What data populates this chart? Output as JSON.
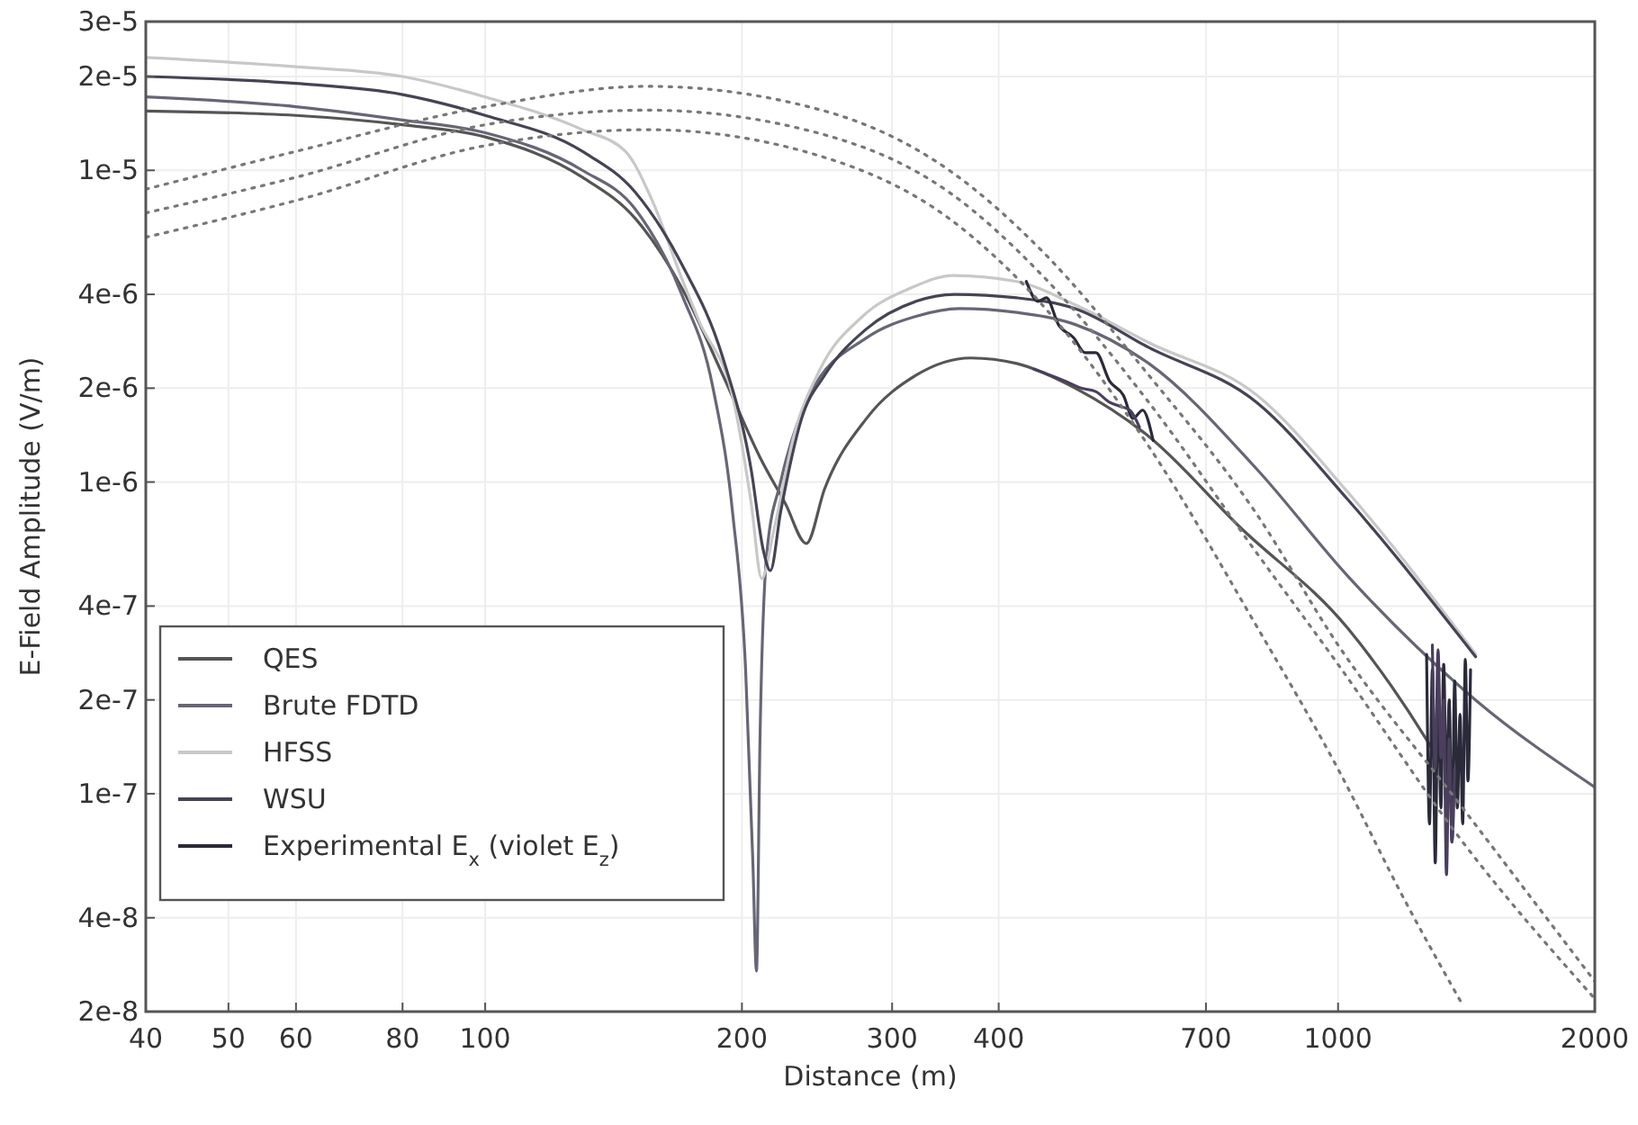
{
  "chart_data": {
    "type": "line",
    "xlabel": "Distance (m)",
    "ylabel": "E-Field Amplitude (V/m)",
    "log": "xy",
    "grid": true,
    "legend": "bottom left",
    "xlim": [
      40,
      2000
    ],
    "ylim": [
      2e-08,
      3e-05
    ],
    "xticks": [
      40,
      50,
      60,
      80,
      100,
      200,
      300,
      400,
      700,
      1000,
      2000
    ],
    "yticks": [
      {
        "value": 3e-05,
        "label": "3e-5"
      },
      {
        "value": 2e-05,
        "label": "2e-5"
      },
      {
        "value": 1e-05,
        "label": "1e-5"
      },
      {
        "value": 4e-06,
        "label": "4e-6"
      },
      {
        "value": 2e-06,
        "label": "2e-6"
      },
      {
        "value": 1e-06,
        "label": "1e-6"
      },
      {
        "value": 4e-07,
        "label": "4e-7"
      },
      {
        "value": 2e-07,
        "label": "2e-7"
      },
      {
        "value": 1e-07,
        "label": "1e-7"
      },
      {
        "value": 4e-08,
        "label": "4e-8"
      },
      {
        "value": 2e-08,
        "label": "2e-8"
      }
    ],
    "series": [
      {
        "name": "QES",
        "color": "#555555",
        "line_style": "solid",
        "x": [
          40,
          60,
          80,
          100,
          130,
          150,
          170,
          190,
          210,
          225,
          238,
          250,
          280,
          320,
          371,
          420,
          492,
          600,
          766,
          1026,
          1268,
          1320
        ],
        "values": [
          1.55e-05,
          1.5e-05,
          1.4e-05,
          1.28e-05,
          9.5e-06,
          7e-06,
          4.2e-06,
          2.2e-06,
          1.2e-06,
          8.5e-07,
          6.35e-07,
          9.5e-07,
          1.6e-06,
          2.2e-06,
          2.5e-06,
          2.4e-06,
          2e-06,
          1.4e-06,
          7.2e-07,
          3.4e-07,
          1.5e-07,
          1.25e-07
        ]
      },
      {
        "name": "Brute FDTD",
        "color": "#666677",
        "line_style": "solid",
        "x": [
          40,
          60,
          80,
          100,
          130,
          150,
          170,
          185,
          195,
          202,
          206,
          208,
          210,
          214,
          222,
          240,
          280,
          320,
          360,
          420,
          492,
          600,
          803,
          1026,
          1449,
          2000
        ],
        "values": [
          1.72e-05,
          1.6e-05,
          1.45e-05,
          1.32e-05,
          1e-05,
          7.5e-06,
          4e-06,
          2e-06,
          8e-07,
          2.5e-07,
          6e-08,
          2.7e-08,
          1.5e-07,
          6e-07,
          1e-06,
          1.9e-06,
          2.9e-06,
          3.4e-06,
          3.6e-06,
          3.5e-06,
          3.2e-06,
          2.4e-06,
          1.1e-06,
          5e-07,
          2e-07,
          1.05e-07
        ]
      },
      {
        "name": "HFSS",
        "color": "#c8c8c8",
        "line_style": "solid",
        "x": [
          40,
          60,
          80,
          100,
          130,
          146,
          157,
          170,
          178,
          196,
          205,
          211,
          218,
          230,
          247,
          277,
          316,
          354,
          420,
          492,
          600,
          803,
          1026,
          1450
        ],
        "values": [
          2.3e-05,
          2.15e-05,
          2e-05,
          1.72e-05,
          1.35e-05,
          1.15e-05,
          8e-06,
          4.5e-06,
          3.3e-06,
          1.77e-06,
          8.6e-07,
          4.9e-07,
          7e-07,
          1.4e-06,
          2.3e-06,
          3.4e-06,
          4.2e-06,
          4.6e-06,
          4.4e-06,
          3.7e-06,
          2.8e-06,
          1.9e-06,
          9.3e-07,
          2.8e-07
        ]
      },
      {
        "name": "WSU",
        "color": "#444455",
        "line_style": "solid",
        "x": [
          40,
          60,
          80,
          100,
          130,
          150,
          170,
          190,
          205,
          212,
          216,
          222,
          235,
          250,
          280,
          320,
          355,
          420,
          492,
          600,
          803,
          1026,
          1450
        ],
        "values": [
          2e-05,
          1.9e-05,
          1.75e-05,
          1.5e-05,
          1.15e-05,
          8.5e-06,
          5e-06,
          2.5e-06,
          1.1e-06,
          6e-07,
          5.2e-07,
          8e-07,
          1.6e-06,
          2.2e-06,
          3.1e-06,
          3.8e-06,
          4e-06,
          3.9e-06,
          3.6e-06,
          2.7e-06,
          1.8e-06,
          8.8e-07,
          2.75e-07
        ]
      },
      {
        "name": "Experimental E$_{x}$ (violet E$_{z}$)",
        "color": "#2a2a3a",
        "line_style": "solid",
        "x": [
          431,
          445,
          455,
          470,
          490,
          505,
          520,
          540,
          560,
          575,
          590,
          607
        ],
        "values": [
          4.4e-06,
          3.8e-06,
          3.9e-06,
          3.2e-06,
          2.9e-06,
          2.6e-06,
          2.6e-06,
          2.1e-06,
          1.9e-06,
          1.6e-06,
          1.7e-06,
          1.36e-06
        ]
      },
      {
        "color": "#2a2a3a",
        "line_style": "solid",
        "x": [
          1270,
          1280,
          1290,
          1300,
          1310,
          1320,
          1330,
          1340,
          1350,
          1360,
          1370,
          1380,
          1390,
          1400,
          1410,
          1420,
          1430
        ],
        "values": [
          2.8e-07,
          8e-08,
          2.5e-07,
          6e-08,
          2.2e-07,
          9e-08,
          2.6e-07,
          1e-07,
          2e-07,
          7e-08,
          2.3e-07,
          9e-08,
          1.8e-07,
          8e-08,
          2.7e-07,
          1.1e-07,
          2.5e-07
        ]
      },
      {
        "color": "#4a3f5c",
        "line_style": "solid",
        "x": [
          440,
          460,
          480,
          500,
          520,
          540,
          555,
          570,
          585
        ],
        "values": [
          2.3e-06,
          2.2e-06,
          2.1e-06,
          2e-06,
          1.95e-06,
          1.8e-06,
          1.75e-06,
          1.7e-06,
          1.5e-06
        ]
      },
      {
        "color": "#4a3f5c",
        "line_style": "solid",
        "x": [
          1290,
          1300,
          1310,
          1320,
          1330,
          1340,
          1350,
          1360,
          1370
        ],
        "values": [
          3e-07,
          1.2e-07,
          2.9e-07,
          1.3e-07,
          2e-07,
          5.5e-08,
          1.5e-07,
          7e-08,
          1.2e-07
        ]
      },
      {
        "color": "#777777",
        "line_style": "dotted",
        "x": [
          40,
          60,
          100,
          155,
          250,
          350,
          450,
          600,
          800,
          1000,
          1400,
          2000
        ],
        "values": [
          8.7e-06,
          1.15e-05,
          1.6e-05,
          1.86e-05,
          1.55e-05,
          1e-05,
          5.5e-06,
          2.2e-06,
          8e-07,
          3e-07,
          9e-08,
          2.5e-08
        ]
      },
      {
        "color": "#777777",
        "line_style": "dotted",
        "x": [
          40,
          60,
          100,
          155,
          250,
          350,
          450,
          600,
          800,
          1000,
          1400,
          2000
        ],
        "values": [
          7.3e-06,
          9.5e-06,
          1.4e-05,
          1.56e-05,
          1.3e-05,
          8.5e-06,
          4.6e-06,
          1.8e-06,
          6e-07,
          2.6e-07,
          7e-08,
          2.2e-08
        ]
      },
      {
        "color": "#777777",
        "line_style": "dotted",
        "x": [
          40,
          60,
          100,
          155,
          250,
          350,
          450,
          600,
          800,
          1000,
          1200,
          1400
        ],
        "values": [
          6.1e-06,
          8e-06,
          1.2e-05,
          1.35e-05,
          1.1e-05,
          7e-06,
          3.7e-06,
          1.3e-06,
          3.5e-07,
          1.2e-07,
          4.5e-08,
          2.1e-08
        ]
      }
    ]
  }
}
